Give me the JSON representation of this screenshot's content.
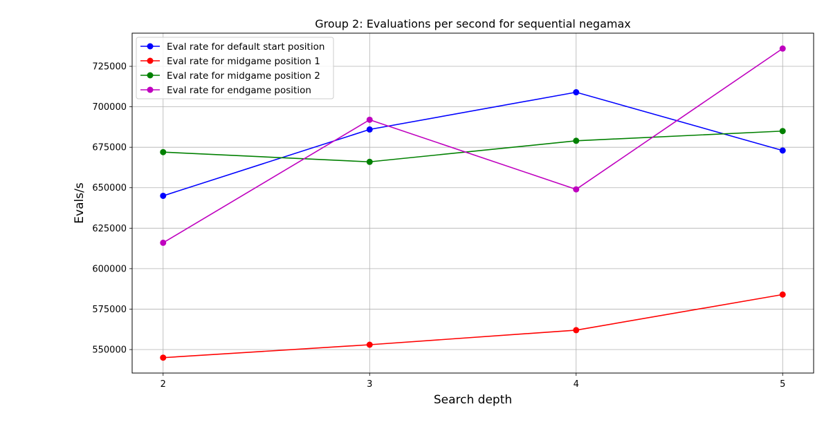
{
  "chart_data": {
    "type": "line",
    "title": "Group 2: Evaluations per second for sequential negamax",
    "xlabel": "Search depth",
    "ylabel": "Evals/s",
    "x": [
      2,
      3,
      4,
      5
    ],
    "x_ticks": [
      "2",
      "3",
      "4",
      "5"
    ],
    "xlim": [
      1.85,
      5.15
    ],
    "ylim": [
      535500,
      745500
    ],
    "y_ticks": [
      550000,
      575000,
      600000,
      625000,
      650000,
      675000,
      700000,
      725000
    ],
    "y_tick_labels": [
      "550000",
      "575000",
      "600000",
      "625000",
      "650000",
      "675000",
      "700000",
      "725000"
    ],
    "grid": true,
    "legend_position": "upper-left",
    "series": [
      {
        "name": "Eval rate for default start position",
        "color": "#0000ff",
        "values": [
          645000,
          686000,
          709000,
          673000
        ]
      },
      {
        "name": "Eval rate for midgame position 1",
        "color": "#ff0000",
        "values": [
          545000,
          553000,
          562000,
          584000
        ]
      },
      {
        "name": "Eval rate for midgame position 2",
        "color": "#008000",
        "values": [
          672000,
          666000,
          679000,
          685000
        ]
      },
      {
        "name": "Eval rate for endgame position",
        "color": "#bf00bf",
        "values": [
          616000,
          692000,
          649000,
          736000
        ]
      }
    ]
  }
}
